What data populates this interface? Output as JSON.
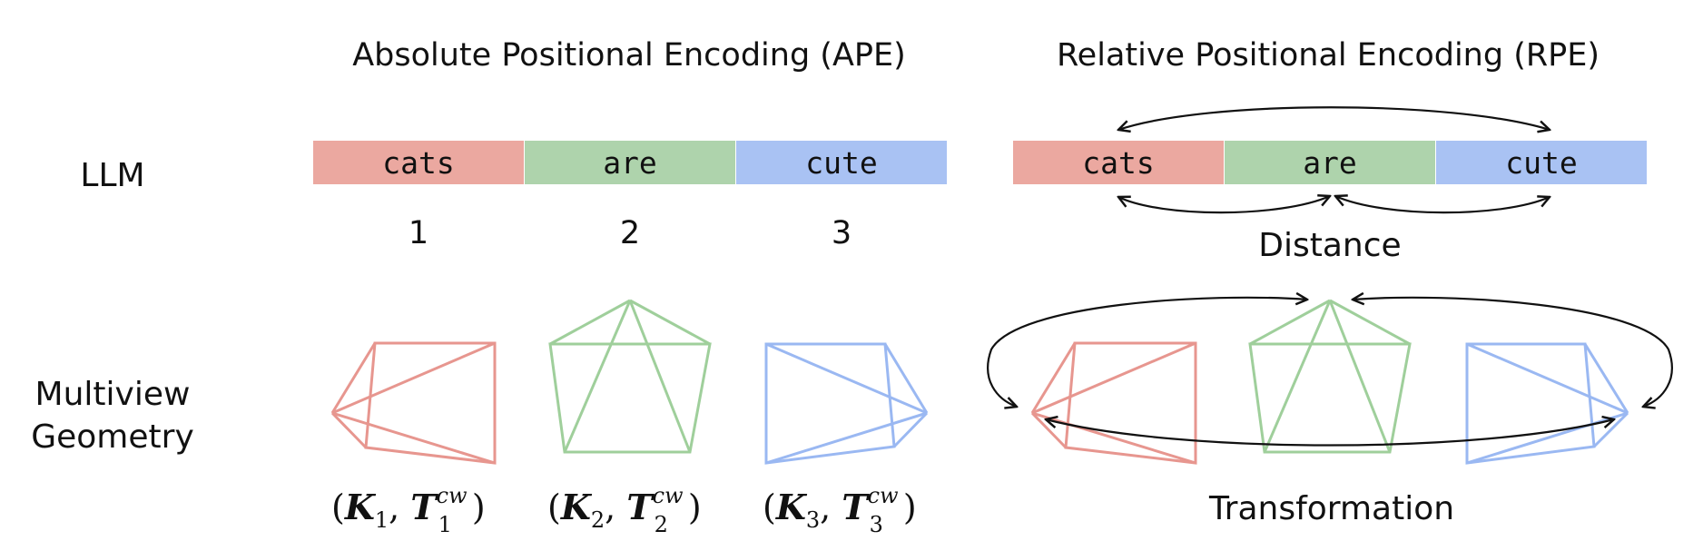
{
  "colors": {
    "red": "#eba8a0",
    "green": "#aed3ac",
    "blue": "#a9c2f3",
    "red_stroke": "#e7968f",
    "green_stroke": "#9fcf9b",
    "blue_stroke": "#9ab8f2"
  },
  "titles": {
    "ape": "Absolute Positional Encoding (APE)",
    "rpe": "Relative Positional Encoding (RPE)"
  },
  "rows": {
    "llm": "LLM",
    "multiview_line1": "Multiview",
    "multiview_line2": "Geometry"
  },
  "tokens": [
    "cats",
    "are",
    "cute"
  ],
  "indices": [
    "1",
    "2",
    "3"
  ],
  "labels": {
    "distance": "Distance",
    "transformation": "Transformation"
  },
  "cameras": [
    {
      "K": "K",
      "T": "T",
      "idx": "1",
      "sup": "cw"
    },
    {
      "K": "K",
      "T": "T",
      "idx": "2",
      "sup": "cw"
    },
    {
      "K": "K",
      "T": "T",
      "idx": "3",
      "sup": "cw"
    }
  ]
}
